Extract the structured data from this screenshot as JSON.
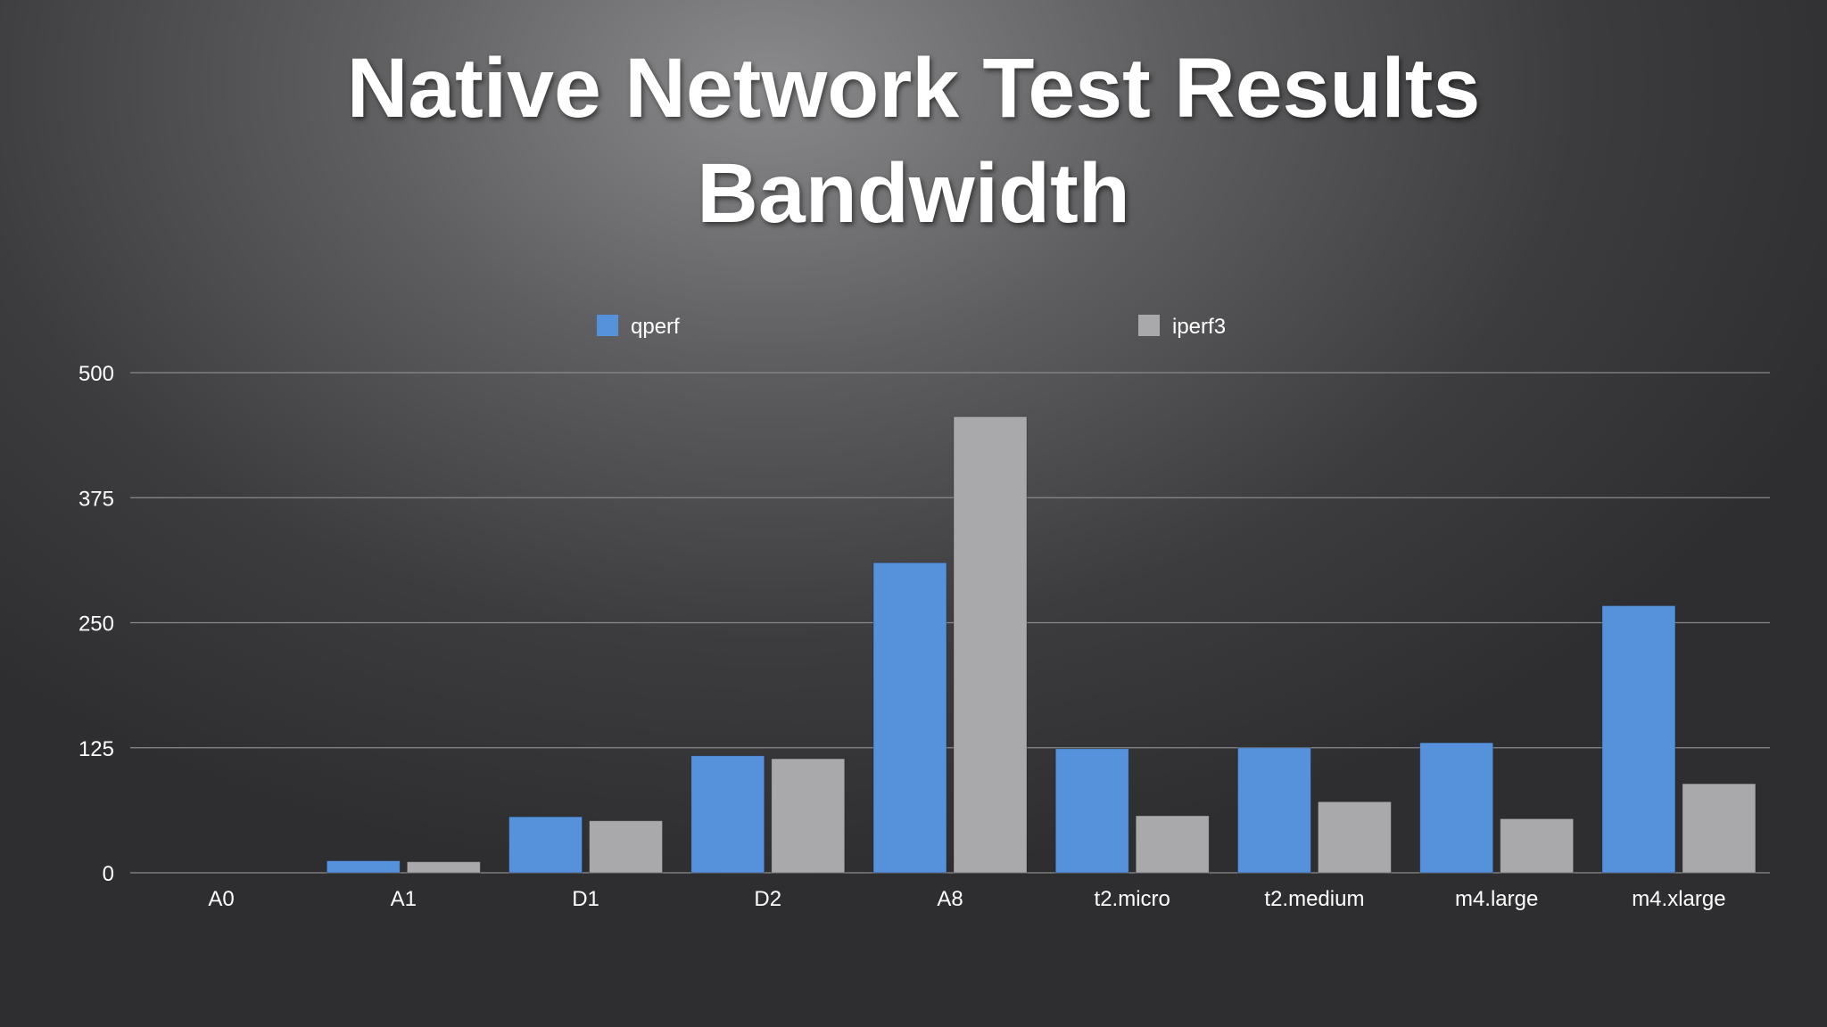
{
  "title": {
    "line1": "Native Network Test Results",
    "line2": "Bandwidth"
  },
  "colors": {
    "qperf": "#5691dc",
    "iperf3": "#a9a9ab",
    "grid": "#8a8a8a",
    "text": "#ffffff"
  },
  "chart_data": {
    "type": "bar",
    "title": "Native Network Test Results Bandwidth",
    "xlabel": "",
    "ylabel": "",
    "ylim": [
      0,
      500
    ],
    "yticks": [
      "0",
      "125",
      "250",
      "375",
      "500"
    ],
    "grid": true,
    "legend_position": "top",
    "categories": [
      "A0",
      "A1",
      "D1",
      "D2",
      "A8",
      "t2.micro",
      "t2.medium",
      "m4.large",
      "m4.xlarge"
    ],
    "series": [
      {
        "name": "qperf",
        "values": [
          0,
          12,
          56,
          117,
          310,
          124,
          125,
          130,
          267
        ]
      },
      {
        "name": "iperf3",
        "values": [
          0,
          11,
          52,
          114,
          456,
          57,
          71,
          54,
          89
        ]
      }
    ]
  }
}
